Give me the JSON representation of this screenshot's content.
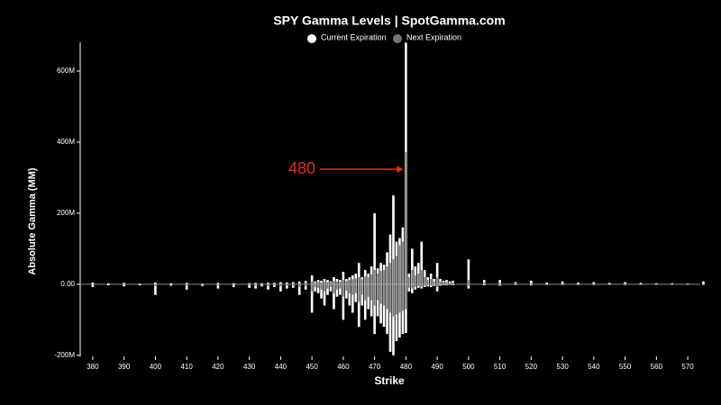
{
  "chart_data": {
    "type": "bar",
    "title": "SPY Gamma Levels | SpotGamma.com",
    "x_label": "Strike",
    "y_label": "Absolute Gamma (MM)",
    "annotation": "480",
    "x": [
      380,
      385,
      390,
      395,
      400,
      405,
      410,
      415,
      420,
      425,
      430,
      432,
      434,
      436,
      438,
      440,
      442,
      444,
      446,
      448,
      450,
      451,
      452,
      453,
      454,
      455,
      456,
      457,
      458,
      459,
      460,
      461,
      462,
      463,
      464,
      465,
      466,
      467,
      468,
      469,
      470,
      471,
      472,
      473,
      474,
      475,
      476,
      477,
      478,
      479,
      480,
      481,
      482,
      483,
      484,
      485,
      486,
      487,
      488,
      489,
      490,
      491,
      492,
      493,
      494,
      495,
      500,
      505,
      510,
      515,
      520,
      525,
      530,
      535,
      540,
      545,
      550,
      555,
      560,
      565,
      570,
      575
    ],
    "series": [
      {
        "name": "Current Expiration",
        "color": "#ffffff",
        "values": [
          5,
          3,
          4,
          2,
          5,
          3,
          4,
          2,
          4,
          3,
          3,
          4,
          3,
          5,
          4,
          6,
          5,
          6,
          8,
          10,
          25,
          8,
          12,
          10,
          15,
          12,
          8,
          20,
          15,
          12,
          35,
          15,
          20,
          25,
          30,
          60,
          20,
          40,
          30,
          50,
          200,
          45,
          60,
          55,
          90,
          140,
          250,
          120,
          130,
          160,
          680,
          30,
          100,
          50,
          60,
          120,
          40,
          20,
          30,
          15,
          60,
          15,
          10,
          12,
          8,
          10,
          70,
          12,
          12,
          6,
          10,
          5,
          8,
          5,
          6,
          4,
          6,
          4,
          3,
          3,
          2,
          8
        ],
        "put_values": [
          -8,
          -3,
          -6,
          -3,
          -30,
          -4,
          -15,
          -5,
          -12,
          -8,
          -10,
          -12,
          -6,
          -15,
          -8,
          -20,
          -12,
          -10,
          -30,
          -15,
          -80,
          -20,
          -25,
          -40,
          -60,
          -30,
          -20,
          -70,
          -35,
          -30,
          -100,
          -40,
          -60,
          -80,
          -50,
          -120,
          -60,
          -100,
          -70,
          -90,
          -140,
          -90,
          -110,
          -120,
          -140,
          -190,
          -200,
          -160,
          -150,
          -140,
          -137,
          -20,
          -25,
          -15,
          -10,
          -12,
          -8,
          -6,
          -8,
          -5,
          -20,
          -4,
          -3,
          -3,
          -2,
          -3,
          -12,
          -3,
          -4,
          -2,
          -3,
          -2,
          -2,
          -2,
          -2,
          -1,
          -2,
          -1,
          -1,
          -1,
          -1,
          -2
        ]
      },
      {
        "name": "Next Expiration",
        "color": "#777777",
        "values": [
          1,
          1,
          1,
          1,
          1,
          1,
          1,
          1,
          1,
          1,
          1,
          1,
          1,
          2,
          1,
          2,
          2,
          3,
          3,
          4,
          8,
          4,
          6,
          5,
          7,
          6,
          5,
          9,
          8,
          7,
          12,
          9,
          12,
          14,
          16,
          20,
          14,
          22,
          20,
          28,
          40,
          30,
          38,
          40,
          50,
          60,
          70,
          80,
          110,
          120,
          372,
          20,
          40,
          25,
          30,
          40,
          20,
          12,
          15,
          8,
          20,
          8,
          6,
          6,
          4,
          5,
          12,
          5,
          4,
          3,
          3,
          2,
          2,
          2,
          2,
          1,
          2,
          1,
          1,
          1,
          1,
          1
        ],
        "put_values": [
          -2,
          -1,
          -2,
          -1,
          -5,
          -1,
          -4,
          -2,
          -3,
          -2,
          -3,
          -4,
          -2,
          -5,
          -3,
          -6,
          -4,
          -4,
          -8,
          -5,
          -20,
          -8,
          -10,
          -15,
          -20,
          -12,
          -8,
          -25,
          -15,
          -12,
          -35,
          -18,
          -25,
          -30,
          -25,
          -50,
          -30,
          -45,
          -35,
          -45,
          -60,
          -45,
          -55,
          -60,
          -70,
          -80,
          -90,
          -85,
          -80,
          -75,
          -70,
          -10,
          -12,
          -8,
          -5,
          -6,
          -4,
          -3,
          -4,
          -3,
          -8,
          -2,
          -2,
          -2,
          -1,
          -2,
          -5,
          -1,
          -2,
          -1,
          -1,
          -1,
          -1,
          -1,
          -1,
          -1,
          -1,
          -1,
          -1,
          -1,
          -1,
          -1
        ]
      }
    ],
    "xlim": [
      376,
      574
    ],
    "xticks": [
      380,
      390,
      400,
      410,
      420,
      430,
      440,
      450,
      460,
      470,
      480,
      490,
      500,
      510,
      520,
      530,
      540,
      550,
      560,
      570
    ],
    "ylim": [
      -203,
      681
    ],
    "yticks": [
      {
        "value": -200,
        "label": "-200M"
      },
      {
        "value": 0,
        "label": "0.00"
      },
      {
        "value": 200,
        "label": "200M"
      },
      {
        "value": 400,
        "label": "400M"
      },
      {
        "value": 600,
        "label": "600M"
      }
    ],
    "legend": "top"
  }
}
